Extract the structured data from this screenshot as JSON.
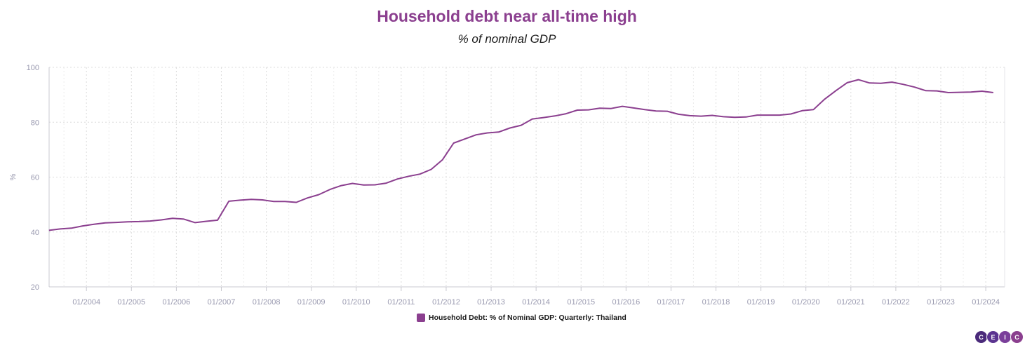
{
  "chart_data": {
    "type": "line",
    "title": "Household debt near all-time high",
    "subtitle": "% of nominal GDP",
    "ylabel": "%",
    "xlabel": "",
    "ylim": [
      20,
      100
    ],
    "yticks": [
      20,
      40,
      60,
      80,
      100
    ],
    "x_tick_labels": [
      "01/2004",
      "01/2005",
      "01/2006",
      "01/2007",
      "01/2008",
      "01/2009",
      "01/2010",
      "01/2011",
      "01/2012",
      "01/2013",
      "01/2014",
      "01/2015",
      "01/2016",
      "01/2017",
      "01/2018",
      "01/2019",
      "01/2020",
      "01/2021",
      "01/2022",
      "01/2023",
      "01/2024"
    ],
    "grid": true,
    "legend_position": "bottom-center",
    "series": [
      {
        "name": "Household Debt: % of Nominal GDP: Quarterly: Thailand",
        "color": "#8b3f8f",
        "x": [
          "2003-03",
          "2003-06",
          "2003-09",
          "2003-12",
          "2004-03",
          "2004-06",
          "2004-09",
          "2004-12",
          "2005-03",
          "2005-06",
          "2005-09",
          "2005-12",
          "2006-03",
          "2006-06",
          "2006-09",
          "2006-12",
          "2007-03",
          "2007-06",
          "2007-09",
          "2007-12",
          "2008-03",
          "2008-06",
          "2008-09",
          "2008-12",
          "2009-03",
          "2009-06",
          "2009-09",
          "2009-12",
          "2010-03",
          "2010-06",
          "2010-09",
          "2010-12",
          "2011-03",
          "2011-06",
          "2011-09",
          "2011-12",
          "2012-03",
          "2012-06",
          "2012-09",
          "2012-12",
          "2013-03",
          "2013-06",
          "2013-09",
          "2013-12",
          "2014-03",
          "2014-06",
          "2014-09",
          "2014-12",
          "2015-03",
          "2015-06",
          "2015-09",
          "2015-12",
          "2016-03",
          "2016-06",
          "2016-09",
          "2016-12",
          "2017-03",
          "2017-06",
          "2017-09",
          "2017-12",
          "2018-03",
          "2018-06",
          "2018-09",
          "2018-12",
          "2019-03",
          "2019-06",
          "2019-09",
          "2019-12",
          "2020-03",
          "2020-06",
          "2020-09",
          "2020-12",
          "2021-03",
          "2021-06",
          "2021-09",
          "2021-12",
          "2022-03",
          "2022-06",
          "2022-09",
          "2022-12",
          "2023-03",
          "2023-06",
          "2023-09",
          "2023-12",
          "2024-03"
        ],
        "values": [
          40.6,
          41.1,
          41.4,
          42.2,
          42.8,
          43.3,
          43.5,
          43.7,
          43.8,
          44.0,
          44.4,
          45.0,
          44.7,
          43.4,
          43.9,
          44.3,
          51.2,
          51.6,
          51.9,
          51.7,
          51.1,
          51.1,
          50.8,
          52.4,
          53.6,
          55.5,
          56.9,
          57.7,
          57.1,
          57.2,
          57.8,
          59.3,
          60.3,
          61.1,
          62.8,
          66.3,
          72.4,
          73.9,
          75.4,
          76.1,
          76.4,
          77.9,
          78.9,
          81.2,
          81.7,
          82.3,
          83.1,
          84.4,
          84.5,
          85.1,
          85.0,
          85.8,
          85.2,
          84.6,
          84.1,
          84.0,
          82.9,
          82.4,
          82.2,
          82.5,
          82.0,
          81.8,
          81.9,
          82.6,
          82.6,
          82.6,
          83.0,
          84.2,
          84.6,
          88.4,
          91.5,
          94.4,
          95.5,
          94.3,
          94.2,
          94.6,
          93.8,
          92.8,
          91.5,
          91.4,
          90.8,
          90.9,
          91.0,
          91.3,
          90.8
        ]
      }
    ]
  },
  "logo": {
    "letters": [
      "C",
      "E",
      "I",
      "C"
    ],
    "colors": [
      "#4a2a7a",
      "#5b3490",
      "#7a3f9a",
      "#8b3f8f"
    ]
  }
}
